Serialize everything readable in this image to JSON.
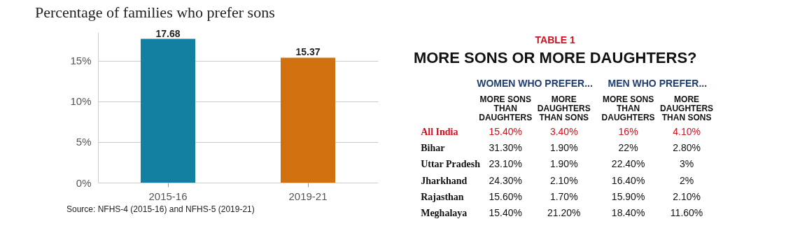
{
  "chart_data": [
    {
      "type": "bar",
      "title": "Percentage of families who prefer sons",
      "categories": [
        "2015-16",
        "2019-21"
      ],
      "values": [
        17.68,
        15.37
      ],
      "colors": [
        "#1380a1",
        "#d1700e"
      ],
      "ylim": [
        0,
        18.5
      ],
      "yticks": [
        {
          "value": 0,
          "label": "0%"
        },
        {
          "value": 5,
          "label": "5%"
        },
        {
          "value": 10,
          "label": "10%"
        },
        {
          "value": 15,
          "label": "15%"
        }
      ],
      "grid": "y",
      "data_labels": true,
      "annotations": [
        "Source: NFHS-4 (2015-16) and NFHS-5 (2019-21)"
      ]
    },
    {
      "type": "other",
      "subtitle": "TABLE 1",
      "title": "MORE SONS OR MORE DAUGHTERS?",
      "annotations": [
        "WOMEN WHO PREFER...",
        "MEN WHO PREFER..."
      ],
      "categories": [
        "MORE SONS THAN DAUGHTERS",
        "MORE DAUGHTERS THAN SONS",
        "MORE SONS THAN DAUGHTERS",
        "MORE DAUGHTERS THAN SONS"
      ],
      "y_categories": [
        "All India",
        "Bihar",
        "Uttar Pradesh",
        "Jharkhand",
        "Rajasthan",
        "Meghalaya"
      ],
      "cell_labels": [
        [
          "15.40%",
          "3.40%",
          "16%",
          "4.10%"
        ],
        [
          "31.30%",
          "1.90%",
          "22%",
          "2.80%"
        ],
        [
          "23.10%",
          "1.90%",
          "22.40%",
          "3%"
        ],
        [
          "24.30%",
          "2.10%",
          "16.40%",
          "2%"
        ],
        [
          "15.60%",
          "1.70%",
          "15.90%",
          "2.10%"
        ],
        [
          "15.40%",
          "21.20%",
          "18.40%",
          "11.60%"
        ]
      ]
    }
  ]
}
